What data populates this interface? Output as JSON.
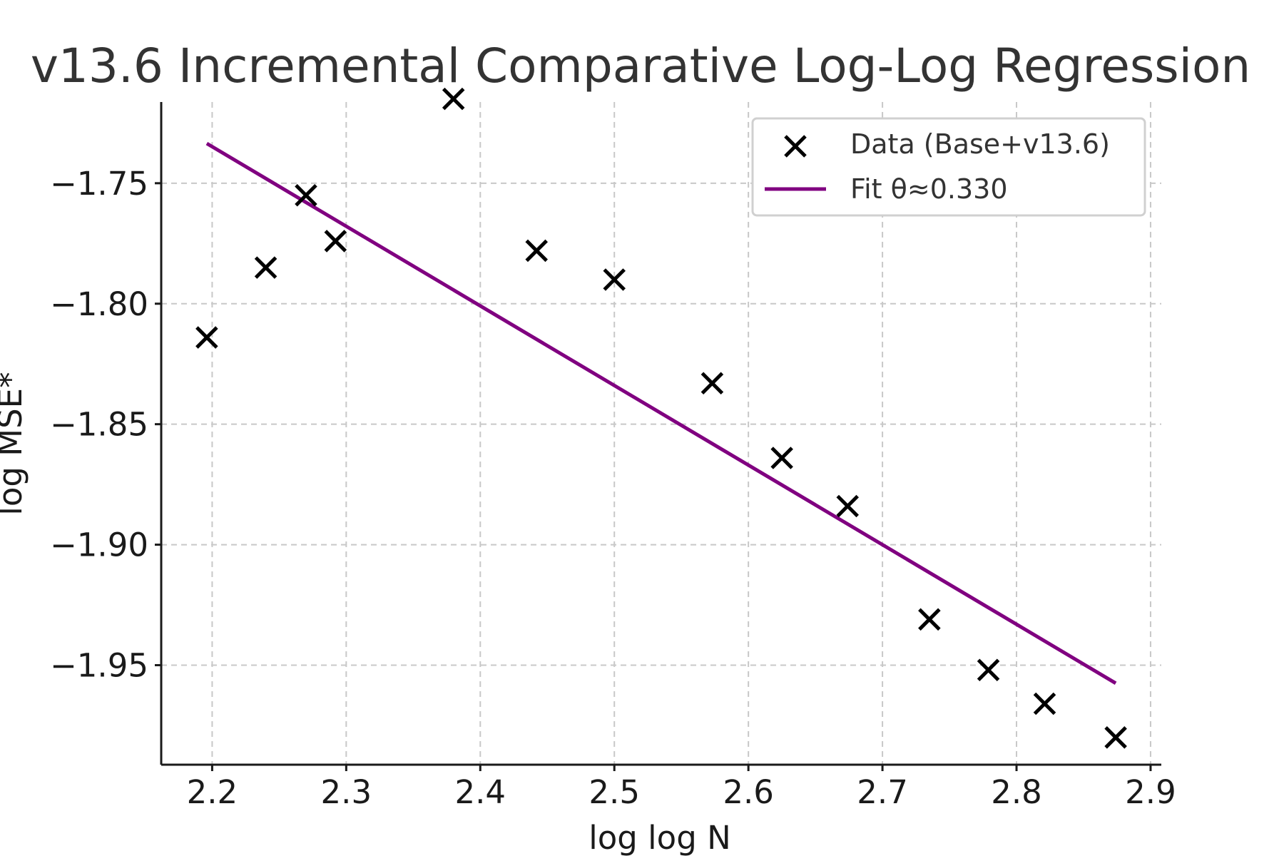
{
  "chart_data": {
    "type": "scatter",
    "title": "v13.6 Incremental Comparative Log-Log Regression",
    "xlabel": "log log N",
    "ylabel": "log MSE*",
    "xlim": [
      2.162,
      2.908
    ],
    "ylim": [
      -1.9913,
      -1.7163
    ],
    "xticks": [
      2.2,
      2.3,
      2.4,
      2.5,
      2.6,
      2.7,
      2.8,
      2.9
    ],
    "xtick_labels": [
      "2.2",
      "2.3",
      "2.4",
      "2.5",
      "2.6",
      "2.7",
      "2.8",
      "2.9"
    ],
    "yticks": [
      -1.75,
      -1.8,
      -1.85,
      -1.9,
      -1.95
    ],
    "ytick_labels": [
      "−1.75",
      "−1.80",
      "−1.85",
      "−1.90",
      "−1.95"
    ],
    "grid": true,
    "legend_position": "top-right",
    "series": [
      {
        "name": "Data (Base+v13.6)",
        "kind": "scatter",
        "marker": "x",
        "color": "#000000",
        "x": [
          2.196,
          2.24,
          2.27,
          2.292,
          2.38,
          2.442,
          2.5,
          2.573,
          2.625,
          2.674,
          2.735,
          2.779,
          2.821,
          2.874
        ],
        "y": [
          -1.814,
          -1.785,
          -1.755,
          -1.774,
          -1.715,
          -1.778,
          -1.79,
          -1.833,
          -1.864,
          -1.884,
          -1.931,
          -1.952,
          -1.966,
          -1.98
        ]
      },
      {
        "name": "Fit θ≈0.330",
        "kind": "line",
        "color": "#800080",
        "x": [
          2.196,
          2.874
        ],
        "y": [
          -1.7335,
          -1.9575
        ]
      }
    ]
  }
}
